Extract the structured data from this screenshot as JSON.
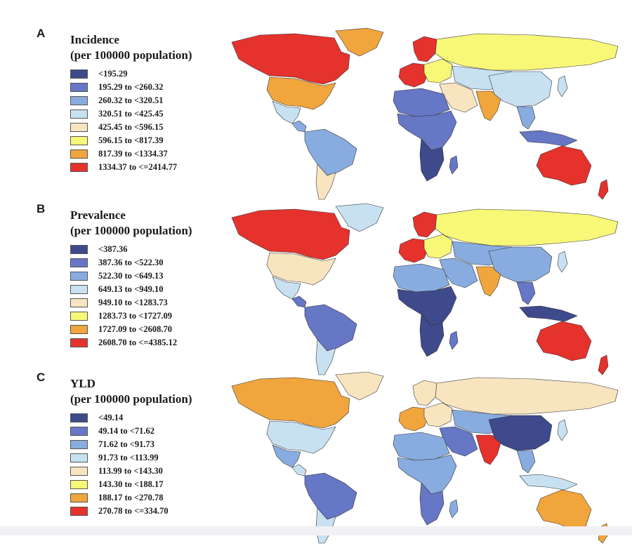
{
  "colors": {
    "c1": "#3f4a8c",
    "c2": "#6677c6",
    "c3": "#88acdf",
    "c4": "#c8e1f1",
    "c5": "#f8e5c0",
    "c6": "#f8f878",
    "c7": "#f1a53d",
    "c8": "#e5322d"
  },
  "panels": [
    {
      "letter": "A",
      "title_line1": "Incidence",
      "title_line2": "(per 100000 population)",
      "legend": [
        {
          "label": "<195.29",
          "color_key": "c1"
        },
        {
          "label": "195.29 to <260.32",
          "color_key": "c2"
        },
        {
          "label": "260.32 to <320.51",
          "color_key": "c3"
        },
        {
          "label": "320.51 to <425.45",
          "color_key": "c4"
        },
        {
          "label": "425.45 to <596.15",
          "color_key": "c5"
        },
        {
          "label": "596.15 to <817.39",
          "color_key": "c6"
        },
        {
          "label": "817.39 to <1334.37",
          "color_key": "c7"
        },
        {
          "label": "1334.37 to <=2414.77",
          "color_key": "c8"
        }
      ],
      "regions": {
        "greenland": "c7",
        "canada": "c8",
        "usa": "c7",
        "mexico": "c4",
        "central_america": "c3",
        "south_america_n": "c3",
        "south_america_s": "c5",
        "western_europe": "c8",
        "scandinavia": "c8",
        "eastern_europe": "c6",
        "russia": "c6",
        "central_asia": "c4",
        "middle_east": "c5",
        "north_africa": "c2",
        "sub_saharan_africa": "c2",
        "southern_africa": "c1",
        "madagascar": "c2",
        "south_asia": "c7",
        "china": "c4",
        "japan": "c4",
        "southeast_asia": "c3",
        "indonesia": "c2",
        "australia": "c8",
        "new_zealand": "c8"
      }
    },
    {
      "letter": "B",
      "title_line1": "Prevalence",
      "title_line2": "(per 100000 population)",
      "legend": [
        {
          "label": "<387.36",
          "color_key": "c1"
        },
        {
          "label": "387.36 to <522.30",
          "color_key": "c2"
        },
        {
          "label": "522.30 to <649.13",
          "color_key": "c3"
        },
        {
          "label": "649.13 to <949.10",
          "color_key": "c4"
        },
        {
          "label": "949.10 to <1283.73",
          "color_key": "c5"
        },
        {
          "label": "1283.73 to <1727.09",
          "color_key": "c6"
        },
        {
          "label": "1727.09 to <2608.70",
          "color_key": "c7"
        },
        {
          "label": "2608.70 to <=4385.12",
          "color_key": "c8"
        }
      ],
      "regions": {
        "greenland": "c4",
        "canada": "c8",
        "usa": "c5",
        "mexico": "c4",
        "central_america": "c2",
        "south_america_n": "c2",
        "south_america_s": "c4",
        "western_europe": "c8",
        "scandinavia": "c8",
        "eastern_europe": "c6",
        "russia": "c6",
        "central_asia": "c3",
        "middle_east": "c3",
        "north_africa": "c3",
        "sub_saharan_africa": "c1",
        "southern_africa": "c1",
        "madagascar": "c2",
        "south_asia": "c7",
        "china": "c3",
        "japan": "c4",
        "southeast_asia": "c2",
        "indonesia": "c1",
        "australia": "c8",
        "new_zealand": "c8"
      }
    },
    {
      "letter": "C",
      "title_line1": "YLD",
      "title_line2": "(per 100000 population)",
      "legend": [
        {
          "label": "<49.14",
          "color_key": "c1"
        },
        {
          "label": "49.14 to <71.62",
          "color_key": "c2"
        },
        {
          "label": "71.62 to <91.73",
          "color_key": "c3"
        },
        {
          "label": "91.73 to <113.99",
          "color_key": "c4"
        },
        {
          "label": "113.99 to <143.30",
          "color_key": "c5"
        },
        {
          "label": "143.30 to <188.17",
          "color_key": "c6"
        },
        {
          "label": "188.17 to <270.78",
          "color_key": "c7"
        },
        {
          "label": "270.78 to <=334.70",
          "color_key": "c8"
        }
      ],
      "regions": {
        "greenland": "c5",
        "canada": "c7",
        "usa": "c4",
        "mexico": "c3",
        "central_america": "c4",
        "south_america_n": "c2",
        "south_america_s": "c4",
        "western_europe": "c7",
        "scandinavia": "c5",
        "eastern_europe": "c5",
        "russia": "c5",
        "central_asia": "c3",
        "middle_east": "c2",
        "north_africa": "c3",
        "sub_saharan_africa": "c3",
        "southern_africa": "c2",
        "madagascar": "c3",
        "south_asia": "c8",
        "china": "c1",
        "japan": "c4",
        "southeast_asia": "c3",
        "indonesia": "c4",
        "australia": "c7",
        "new_zealand": "c7"
      }
    }
  ]
}
